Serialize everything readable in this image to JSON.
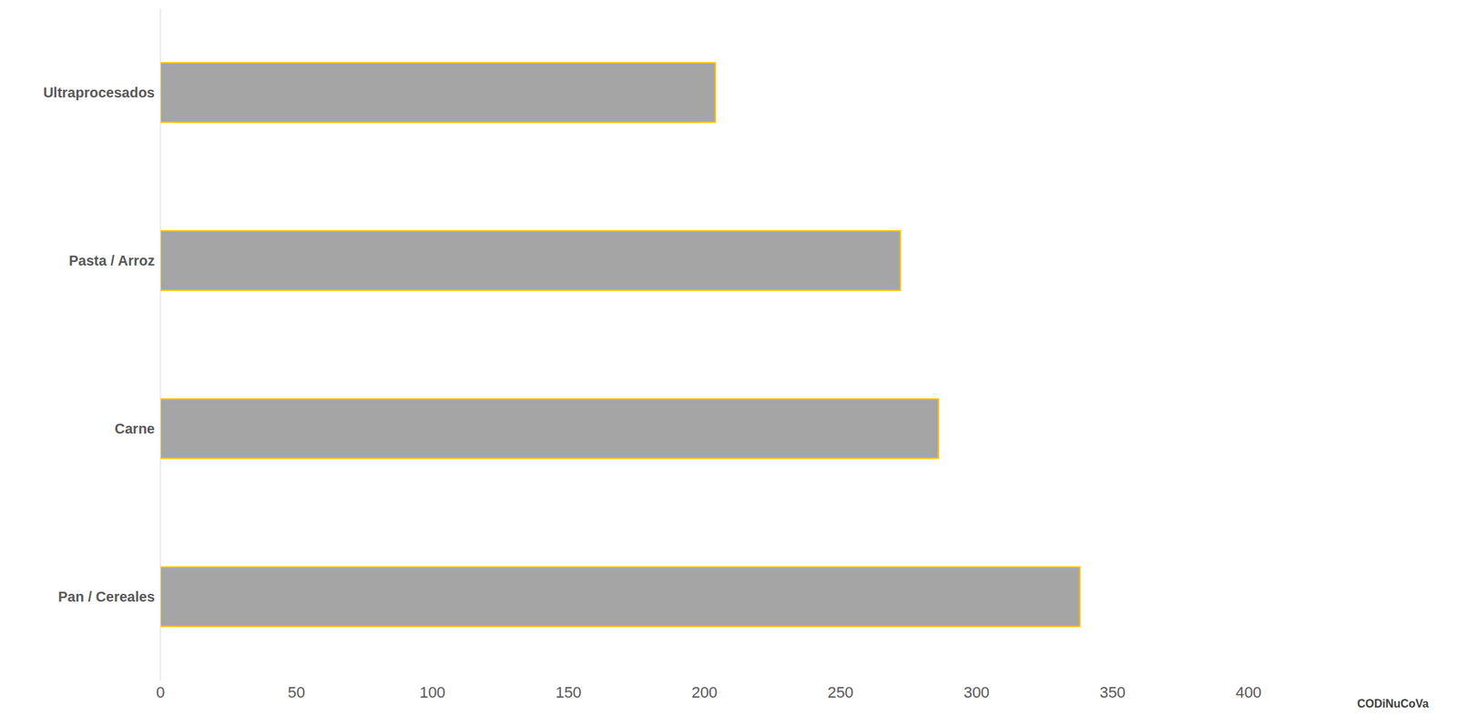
{
  "chart_data": {
    "type": "bar",
    "orientation": "horizontal",
    "categories": [
      "Ultraprocesados",
      "Pasta / Arroz",
      "Carne",
      "Pan / Cereales"
    ],
    "values": [
      204,
      272,
      286,
      338
    ],
    "color": "#a5a5a5",
    "xlim": [
      0,
      400
    ],
    "xticks": [
      0,
      50,
      100,
      150,
      200,
      250,
      300,
      350,
      400
    ],
    "grid": false,
    "annotations": [
      "CODiNuCoVa"
    ]
  }
}
